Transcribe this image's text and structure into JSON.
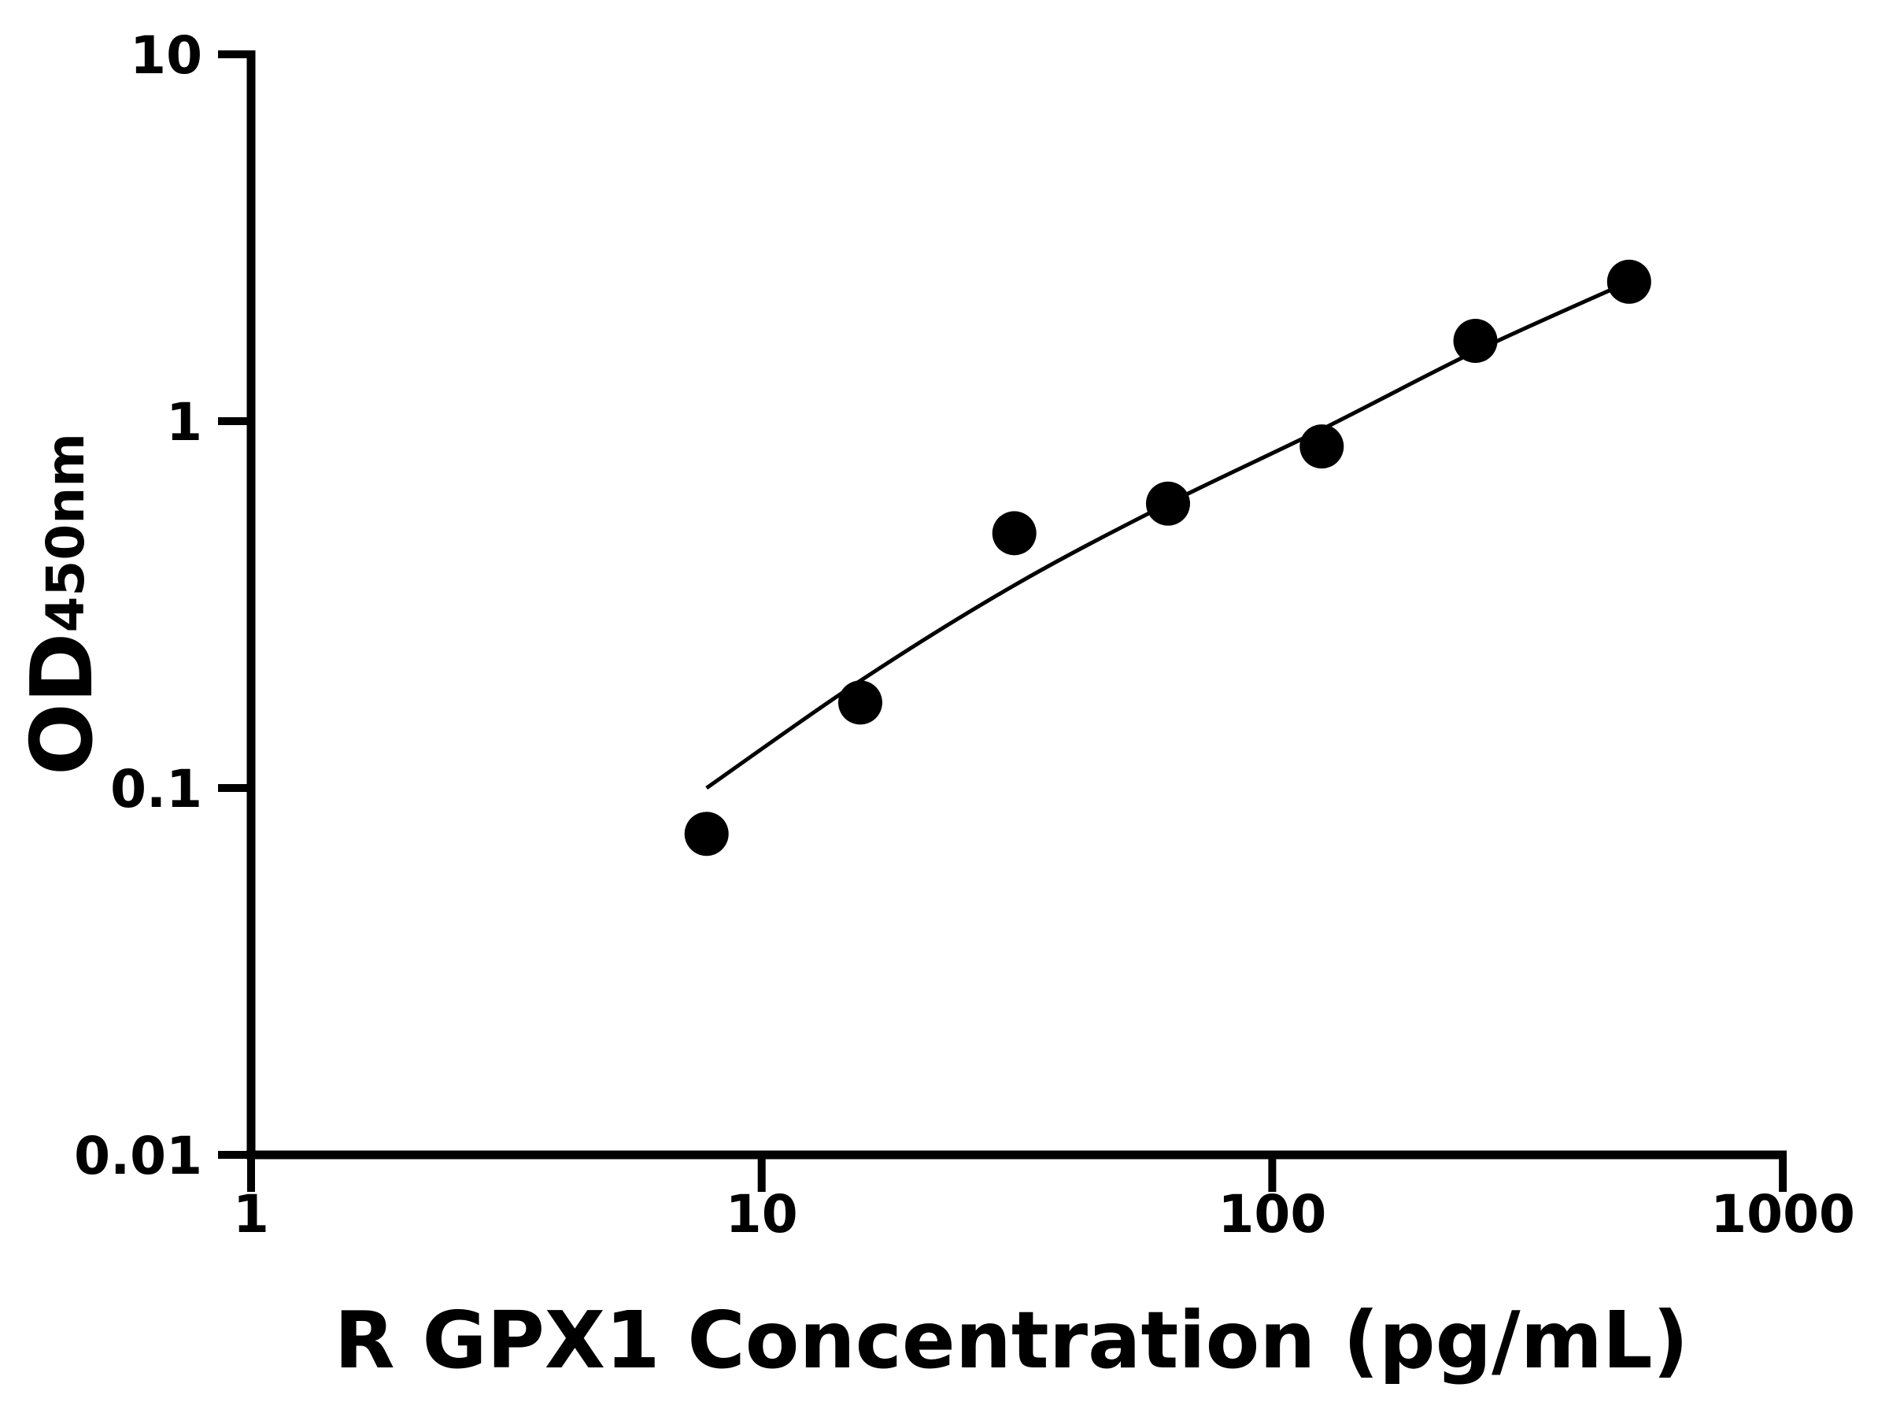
{
  "chart_data": {
    "type": "scatter",
    "title": "",
    "xlabel": "R GPX1 Concentration (pg/mL)",
    "ylabel": {
      "main": "OD",
      "suffix": "450nm"
    },
    "xscale": "log",
    "yscale": "log",
    "xlim": [
      1,
      1000
    ],
    "ylim": [
      0.01,
      10
    ],
    "grid": false,
    "legend": null,
    "x_ticks": [
      {
        "value": 1,
        "label": "1"
      },
      {
        "value": 10,
        "label": "10"
      },
      {
        "value": 100,
        "label": "100"
      },
      {
        "value": 1000,
        "label": "1000"
      }
    ],
    "y_ticks": [
      {
        "value": 10,
        "label": "10"
      },
      {
        "value": 1,
        "label": "1"
      },
      {
        "value": 0.1,
        "label": "0.1"
      },
      {
        "value": 0.01,
        "label": "0.01"
      }
    ],
    "series": [
      {
        "name": "Standard points",
        "type": "scatter",
        "marker": "filled-circle",
        "color": "#000000",
        "x": [
          7.8,
          15.6,
          31.25,
          62.5,
          125,
          250,
          500
        ],
        "y": [
          0.075,
          0.171,
          0.495,
          0.596,
          0.853,
          1.655,
          2.4
        ]
      },
      {
        "name": "Fitted curve",
        "type": "line",
        "color": "#000000",
        "x": [
          7.8,
          15.6,
          31.25,
          62.5,
          125,
          250,
          500
        ],
        "y": [
          0.1,
          0.196,
          0.357,
          0.596,
          0.95,
          1.55,
          2.4
        ]
      }
    ]
  },
  "colors": {
    "background": "#ffffff",
    "foreground": "#000000"
  }
}
